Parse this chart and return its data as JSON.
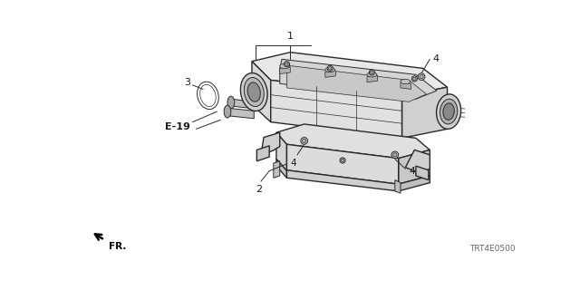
{
  "bg_color": "#ffffff",
  "fig_width": 6.4,
  "fig_height": 3.2,
  "dpi": 100,
  "label_1": "1",
  "label_2": "2",
  "label_3": "3",
  "label_4": "4",
  "label_e19": "E-19",
  "label_fr": "FR.",
  "label_code": "TRT4E0500",
  "line_color": "#2a2a2a",
  "text_color": "#1a1a1a",
  "gray_color": "#666666",
  "component_fill": "#e8e8e8",
  "dark_fill": "#a0a0a0",
  "mid_fill": "#c8c8c8"
}
